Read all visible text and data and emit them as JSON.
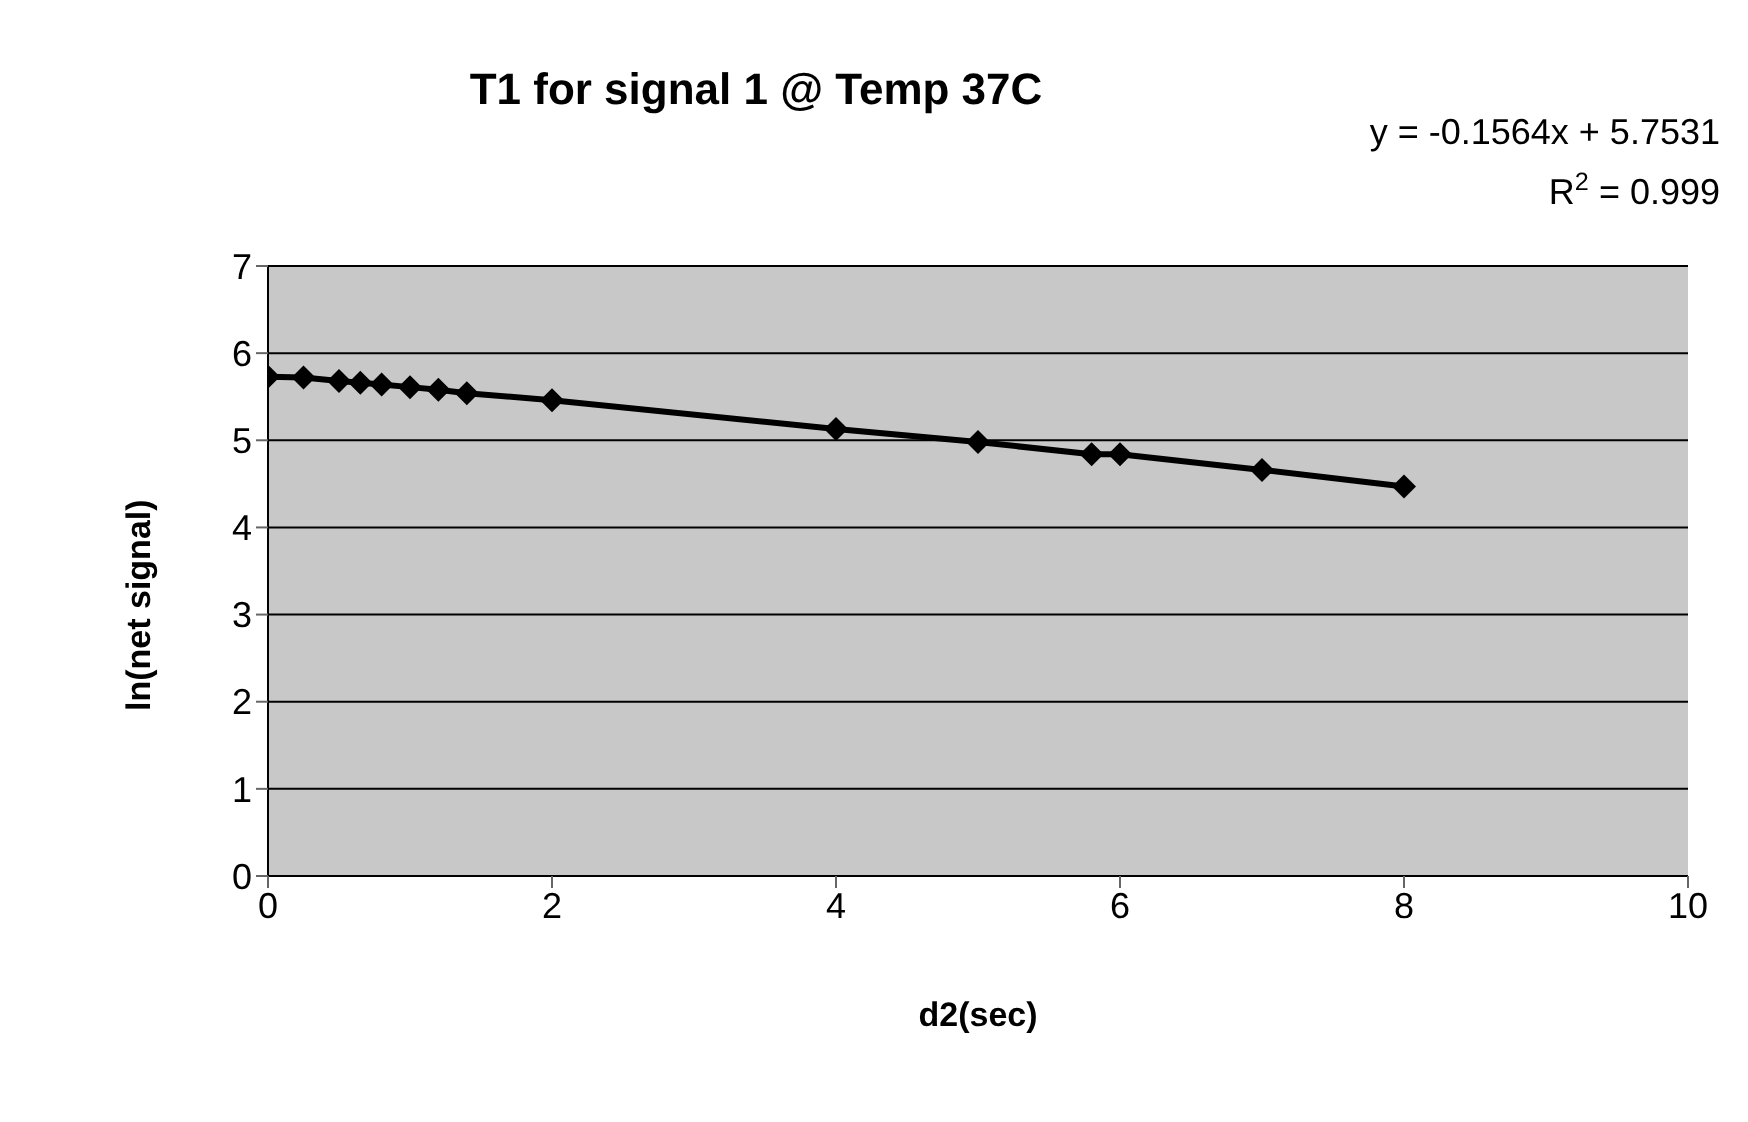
{
  "chart_data": {
    "type": "line",
    "title": "T1 for signal 1 @ Temp 37C",
    "xlabel": "d2(sec)",
    "ylabel": "ln(net signal)",
    "annotations": [
      "y = -0.1564x + 5.7531",
      "R$^{2}$ = 0.999"
    ],
    "series": [
      {
        "color": "#000000",
        "x": [
          0,
          0.25,
          0.5,
          0.65,
          0.8,
          1,
          1.2,
          1.4,
          2,
          4,
          5,
          5.8,
          6,
          7,
          8
        ],
        "values": [
          5.73,
          5.72,
          5.68,
          5.66,
          5.64,
          5.61,
          5.58,
          5.54,
          5.46,
          5.13,
          4.98,
          4.84,
          4.84,
          4.66,
          4.47
        ],
        "marker": "diamond"
      }
    ],
    "xlim": [
      0,
      10
    ],
    "xticks": [
      0,
      2,
      4,
      6,
      8,
      10
    ],
    "ylim": [
      0,
      7
    ],
    "yticks": [
      0,
      1,
      2,
      3,
      4,
      5,
      6,
      7
    ],
    "grid": "y",
    "legend": false
  }
}
